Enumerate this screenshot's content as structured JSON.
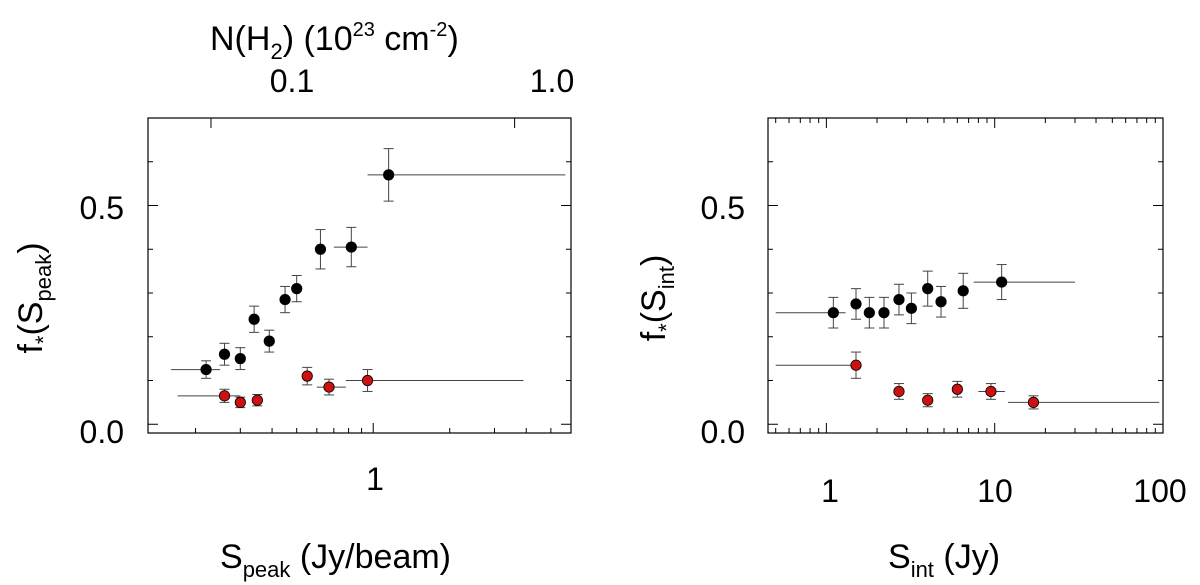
{
  "chart_data": [
    {
      "type": "scatter",
      "panel": "left",
      "xscale": "log",
      "xlim": [
        0.13,
        6.0
      ],
      "ylim": [
        -0.02,
        0.7
      ],
      "yticks": [
        0.0,
        0.5
      ],
      "ytick_labels": [
        "0.0",
        "0.5"
      ],
      "xticks": [
        1
      ],
      "xtick_labels": [
        "1"
      ],
      "ylabel": {
        "main": "f",
        "star": "*",
        "open": "(S",
        "sub": "peak",
        "close": ")"
      },
      "xlabel": {
        "main": "S",
        "sub": "peak",
        "rest": " (Jy/beam)"
      },
      "top_axis": {
        "label": {
          "pre": "N(H",
          "sub": "2",
          "mid": ")  (10",
          "sup1": "23",
          "unit": " cm",
          "sup2": "-2",
          "close": ")"
        },
        "ticks": [
          {
            "label": "0.1",
            "x": 0.23
          },
          {
            "label": "1.0",
            "x": 3.6
          }
        ]
      },
      "series": [
        {
          "name": "black",
          "color": "#000000",
          "points": [
            {
              "x": 0.22,
              "y": 0.125,
              "yerr": 0.02,
              "xmin": 0.16,
              "xmax": 0.25
            },
            {
              "x": 0.26,
              "y": 0.16,
              "yerr": 0.025
            },
            {
              "x": 0.3,
              "y": 0.15,
              "yerr": 0.025
            },
            {
              "x": 0.34,
              "y": 0.24,
              "yerr": 0.03
            },
            {
              "x": 0.39,
              "y": 0.19,
              "yerr": 0.025
            },
            {
              "x": 0.45,
              "y": 0.285,
              "yerr": 0.03
            },
            {
              "x": 0.5,
              "y": 0.31,
              "yerr": 0.03
            },
            {
              "x": 0.62,
              "y": 0.4,
              "yerr": 0.045
            },
            {
              "x": 0.82,
              "y": 0.405,
              "yerr": 0.045,
              "xmin": 0.7,
              "xmax": 0.95
            },
            {
              "x": 1.15,
              "y": 0.57,
              "yerr": 0.06,
              "xmin": 0.95,
              "xmax": 5.7
            }
          ]
        },
        {
          "name": "red",
          "color": "#cc1111",
          "points": [
            {
              "x": 0.26,
              "y": 0.065,
              "yerr": 0.015,
              "xmin": 0.17,
              "xmax": 0.3
            },
            {
              "x": 0.3,
              "y": 0.05,
              "yerr": 0.012
            },
            {
              "x": 0.35,
              "y": 0.055,
              "yerr": 0.013
            },
            {
              "x": 0.55,
              "y": 0.11,
              "yerr": 0.02
            },
            {
              "x": 0.67,
              "y": 0.085,
              "yerr": 0.018,
              "xmin": 0.6,
              "xmax": 0.78
            },
            {
              "x": 0.95,
              "y": 0.1,
              "yerr": 0.025,
              "xmin": 0.78,
              "xmax": 3.9
            }
          ]
        }
      ]
    },
    {
      "type": "scatter",
      "panel": "right",
      "xscale": "log",
      "xlim": [
        0.45,
        100
      ],
      "ylim": [
        -0.02,
        0.7
      ],
      "yticks": [
        0.0,
        0.5
      ],
      "ytick_labels": [
        "0.0",
        "0.5"
      ],
      "xticks": [
        1,
        10,
        100
      ],
      "xtick_labels": [
        "1",
        "10",
        "100"
      ],
      "ylabel": {
        "main": "f",
        "star": "*",
        "open": "(S",
        "sub": "int",
        "close": ")"
      },
      "xlabel": {
        "main": "S",
        "sub": "int",
        "rest": " (Jy)"
      },
      "series": [
        {
          "name": "black",
          "color": "#000000",
          "points": [
            {
              "x": 1.1,
              "y": 0.255,
              "yerr": 0.035,
              "xmin": 0.5,
              "xmax": 1.3
            },
            {
              "x": 1.5,
              "y": 0.275,
              "yerr": 0.035
            },
            {
              "x": 1.8,
              "y": 0.255,
              "yerr": 0.035
            },
            {
              "x": 2.2,
              "y": 0.255,
              "yerr": 0.035
            },
            {
              "x": 2.7,
              "y": 0.285,
              "yerr": 0.035
            },
            {
              "x": 3.2,
              "y": 0.265,
              "yerr": 0.035
            },
            {
              "x": 4.0,
              "y": 0.31,
              "yerr": 0.04
            },
            {
              "x": 4.8,
              "y": 0.28,
              "yerr": 0.035
            },
            {
              "x": 6.5,
              "y": 0.305,
              "yerr": 0.04
            },
            {
              "x": 11,
              "y": 0.325,
              "yerr": 0.04,
              "xmin": 7.5,
              "xmax": 30
            }
          ]
        },
        {
          "name": "red",
          "color": "#cc1111",
          "points": [
            {
              "x": 1.5,
              "y": 0.135,
              "yerr": 0.03,
              "xmin": 0.5,
              "xmax": 1.5
            },
            {
              "x": 2.7,
              "y": 0.075,
              "yerr": 0.018
            },
            {
              "x": 4.0,
              "y": 0.055,
              "yerr": 0.015
            },
            {
              "x": 6.0,
              "y": 0.08,
              "yerr": 0.018
            },
            {
              "x": 9.5,
              "y": 0.075,
              "yerr": 0.018,
              "xmin": 8.0,
              "xmax": 11.5
            },
            {
              "x": 17,
              "y": 0.05,
              "yerr": 0.015,
              "xmin": 12,
              "xmax": 95
            }
          ]
        }
      ]
    }
  ]
}
